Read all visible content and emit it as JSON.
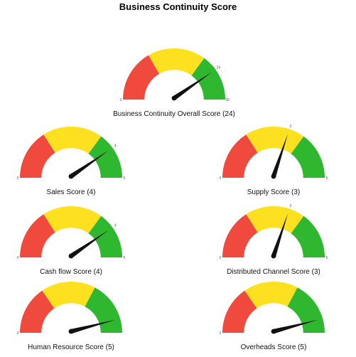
{
  "page": {
    "title": "Business Continuity Score"
  },
  "colors": {
    "red": "#f04a3e",
    "yellow": "#fde121",
    "green": "#2fb72f",
    "needle": "#111111"
  },
  "chart_data": [
    {
      "type": "gauge",
      "label": "Business Continuity Overall Score (24)",
      "value": 24,
      "min": 0,
      "max": 30,
      "bands": [
        {
          "from": 0,
          "to": 10,
          "color": "red"
        },
        {
          "from": 10,
          "to": 21,
          "color": "yellow"
        },
        {
          "from": 21,
          "to": 30,
          "color": "green"
        }
      ],
      "tick_labels": {
        "min": "0",
        "max": "30",
        "value": "24"
      }
    },
    {
      "type": "gauge",
      "label": "Sales Score (4)",
      "value": 4,
      "min": 0,
      "max": 5,
      "bands": [
        {
          "from": 0,
          "to": 1.6,
          "color": "red"
        },
        {
          "from": 1.6,
          "to": 3.5,
          "color": "yellow"
        },
        {
          "from": 3.5,
          "to": 5,
          "color": "green"
        }
      ],
      "tick_labels": {
        "min": "0",
        "max": "5",
        "value": "4"
      }
    },
    {
      "type": "gauge",
      "label": "Supply Score (3)",
      "value": 3,
      "min": 0,
      "max": 5,
      "bands": [
        {
          "from": 0,
          "to": 1.6,
          "color": "red"
        },
        {
          "from": 1.6,
          "to": 3.5,
          "color": "yellow"
        },
        {
          "from": 3.5,
          "to": 5,
          "color": "green"
        }
      ],
      "tick_labels": {
        "min": "0",
        "max": "5",
        "value": "3"
      }
    },
    {
      "type": "gauge",
      "label": "Cash flow Score (4)",
      "value": 4,
      "min": 0,
      "max": 5,
      "bands": [
        {
          "from": 0,
          "to": 1.6,
          "color": "red"
        },
        {
          "from": 1.6,
          "to": 3.5,
          "color": "yellow"
        },
        {
          "from": 3.5,
          "to": 5,
          "color": "green"
        }
      ],
      "tick_labels": {
        "min": "0",
        "max": "5",
        "value": "4"
      }
    },
    {
      "type": "gauge",
      "label": "Distributed Channel Score (3)",
      "value": 3,
      "min": 0,
      "max": 5,
      "bands": [
        {
          "from": 0,
          "to": 1.6,
          "color": "red"
        },
        {
          "from": 1.6,
          "to": 3.5,
          "color": "yellow"
        },
        {
          "from": 3.5,
          "to": 5,
          "color": "green"
        }
      ],
      "tick_labels": {
        "min": "0",
        "max": "5",
        "value": "3"
      }
    },
    {
      "type": "gauge",
      "label": "Human Resource Score (5)",
      "value": 5,
      "min": 0,
      "max": 5.5,
      "bands": [
        {
          "from": 0,
          "to": 1.7,
          "color": "red"
        },
        {
          "from": 1.7,
          "to": 3.6,
          "color": "yellow"
        },
        {
          "from": 3.6,
          "to": 5.5,
          "color": "green"
        }
      ],
      "tick_labels": {
        "min": "0",
        "max": "",
        "value": ""
      }
    },
    {
      "type": "gauge",
      "label": "Overheads Score (5)",
      "value": 5,
      "min": 0,
      "max": 5.5,
      "bands": [
        {
          "from": 0,
          "to": 1.7,
          "color": "red"
        },
        {
          "from": 1.7,
          "to": 3.6,
          "color": "yellow"
        },
        {
          "from": 3.6,
          "to": 5.5,
          "color": "green"
        }
      ],
      "tick_labels": {
        "min": "0",
        "max": "",
        "value": ""
      }
    }
  ]
}
